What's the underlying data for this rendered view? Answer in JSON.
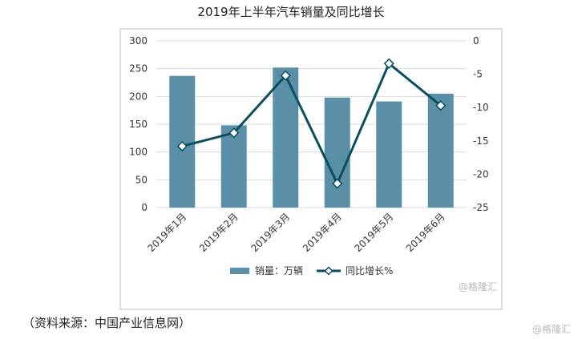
{
  "chart_data": {
    "type": "bar+line",
    "title": "2019年上半年汽车销量及同比增长",
    "categories": [
      "2019年1月",
      "2019年2月",
      "2019年3月",
      "2019年4月",
      "2019年5月",
      "2019年6月"
    ],
    "series": [
      {
        "name": "销量：万辆",
        "type": "bar",
        "axis": "left",
        "values": [
          237,
          148,
          252,
          198,
          191,
          205
        ]
      },
      {
        "name": "同比增长%",
        "type": "line",
        "axis": "right",
        "values": [
          -15.8,
          -13.8,
          -5.2,
          -21.4,
          -3.4,
          -9.7
        ]
      }
    ],
    "y_left": {
      "ylim": [
        0,
        300
      ],
      "ticks": [
        0,
        50,
        100,
        150,
        200,
        250,
        300
      ]
    },
    "y_right": {
      "ylim": [
        -25,
        0
      ],
      "ticks": [
        0,
        -5,
        -10,
        -15,
        -20,
        -25
      ]
    },
    "legend_position": "bottom",
    "grid": true
  },
  "colors": {
    "bar": "#5b8fa8",
    "line": "#0b4f5f",
    "grid": "#d9d9d9"
  },
  "source_text": "（资料来源：中国产业信息网）",
  "watermarks": [
    "@格隆汇",
    "@格隆汇"
  ]
}
